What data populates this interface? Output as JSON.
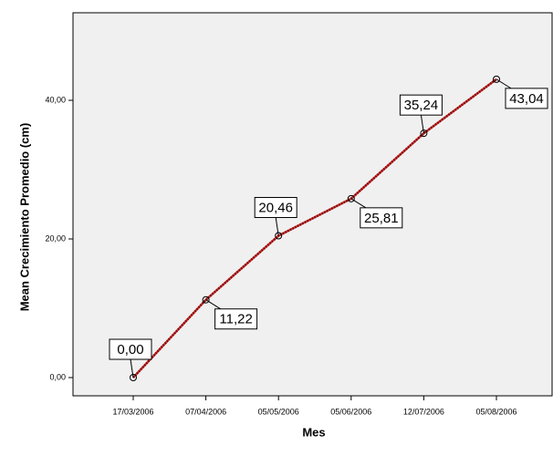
{
  "chart_data": {
    "type": "line",
    "x_label": "Mes",
    "y_label": "Mean Crecimiento Promedio (cm)",
    "categories": [
      "17/03/2006",
      "07/04/2006",
      "05/05/2006",
      "05/06/2006",
      "12/07/2006",
      "05/08/2006"
    ],
    "values": [
      0,
      11.22,
      20.46,
      25.81,
      35.24,
      43.04
    ],
    "value_labels": [
      "0,00",
      "11,22",
      "20,46",
      "25,81",
      "35,24",
      "43,04"
    ],
    "color": "#b22222",
    "ylim": [
      -2.63,
      52.63
    ],
    "yticks": [
      {
        "value": 0,
        "label": "0,00"
      },
      {
        "value": 20,
        "label": "20,00"
      },
      {
        "value": 40,
        "label": "40,00"
      }
    ]
  }
}
